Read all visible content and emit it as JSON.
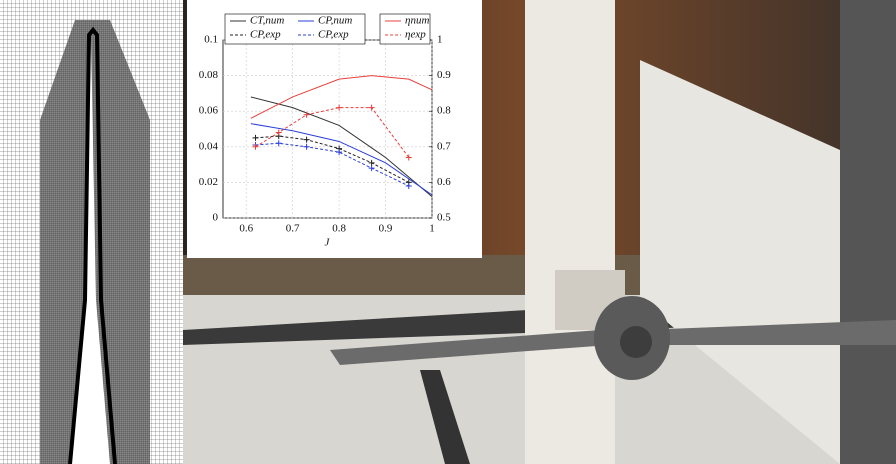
{
  "chart_data": {
    "type": "line",
    "x_label": "J",
    "xlim": [
      0.55,
      1.0
    ],
    "xticks": [
      0.6,
      0.7,
      0.8,
      0.9,
      1
    ],
    "ylim": [
      0,
      0.1
    ],
    "yticks": [
      0,
      0.02,
      0.04,
      0.06,
      0.08,
      0.1
    ],
    "y2lim": [
      0.5,
      1
    ],
    "y2ticks": [
      0.5,
      0.6,
      0.7,
      0.8,
      0.9,
      1
    ],
    "grid": true,
    "series": [
      {
        "name": "CT,num",
        "color": "#333333",
        "dash": false,
        "x": [
          0.61,
          0.7,
          0.8,
          0.9,
          1.0
        ],
        "values": [
          0.068,
          0.062,
          0.052,
          0.034,
          0.012
        ]
      },
      {
        "name": "CP,num",
        "color": "#2b3fd6",
        "dash": false,
        "x": [
          0.61,
          0.7,
          0.8,
          0.9,
          1.0
        ],
        "values": [
          0.053,
          0.049,
          0.043,
          0.031,
          0.013
        ]
      },
      {
        "name": "CP,exp",
        "color": "#222222",
        "dash": true,
        "x": [
          0.62,
          0.67,
          0.73,
          0.8,
          0.87,
          0.95
        ],
        "values": [
          0.045,
          0.046,
          0.044,
          0.039,
          0.031,
          0.02
        ]
      },
      {
        "name": "CP,exp",
        "color": "#2b3fd6",
        "dash": true,
        "x": [
          0.62,
          0.67,
          0.73,
          0.8,
          0.87,
          0.95
        ],
        "values": [
          0.041,
          0.042,
          0.04,
          0.037,
          0.028,
          0.018
        ]
      },
      {
        "name": "ηnum",
        "color": "#e8403a",
        "dash": false,
        "axis": "y2",
        "x": [
          0.61,
          0.7,
          0.8,
          0.87,
          0.95,
          1.0
        ],
        "values": [
          0.78,
          0.84,
          0.89,
          0.9,
          0.89,
          0.86
        ]
      },
      {
        "name": "ηexp",
        "color": "#e8403a",
        "dash": true,
        "axis": "y2",
        "x": [
          0.62,
          0.67,
          0.73,
          0.8,
          0.87,
          0.95
        ],
        "values": [
          0.7,
          0.74,
          0.79,
          0.81,
          0.81,
          0.67
        ]
      }
    ]
  }
}
